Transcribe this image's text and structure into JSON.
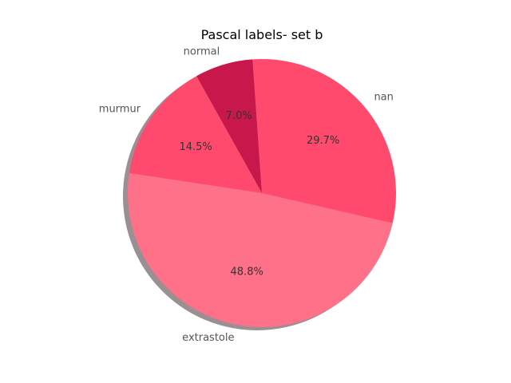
{
  "chart_data": {
    "type": "pie",
    "title": "Pascal labels- set b",
    "slices": [
      {
        "label": "normal",
        "value": 7.0,
        "pct_label": "7.0%",
        "color": "#c8174a"
      },
      {
        "label": "murmur",
        "value": 14.5,
        "pct_label": "14.5%",
        "color": "#ff4a6e"
      },
      {
        "label": "extrastole",
        "value": 48.8,
        "pct_label": "48.8%",
        "color": "#ff7089"
      },
      {
        "label": "nan",
        "value": 29.7,
        "pct_label": "29.7%",
        "color": "#ff4a6e"
      }
    ],
    "shadow": true,
    "start_angle_deg": 94
  }
}
